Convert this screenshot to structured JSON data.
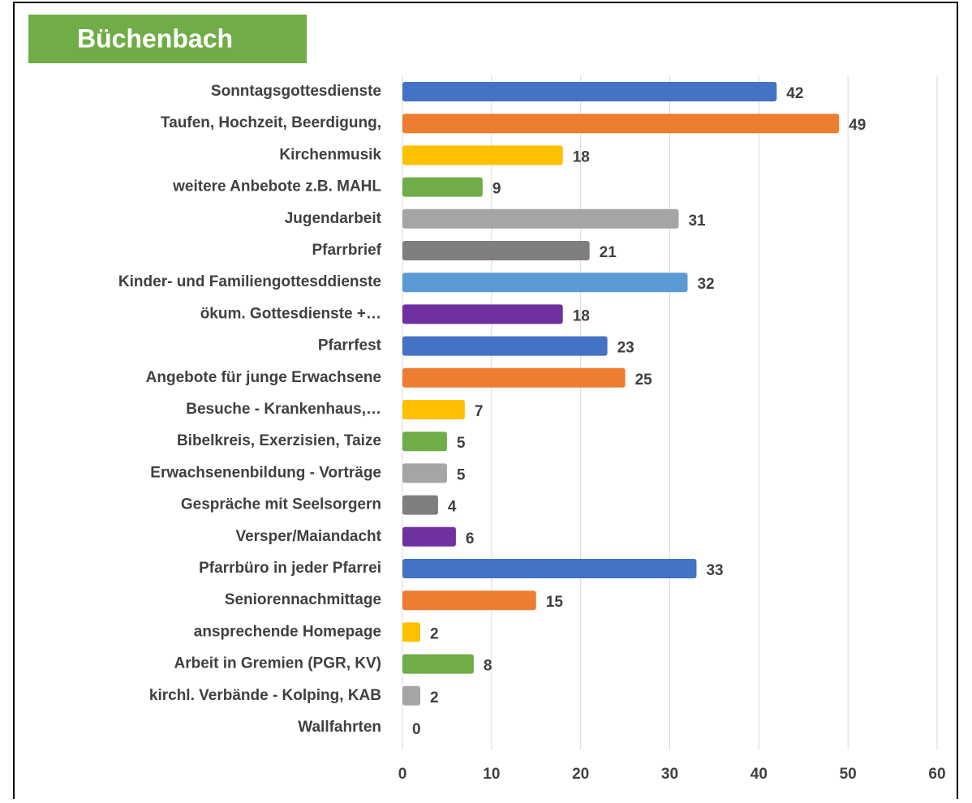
{
  "chart_data": {
    "type": "barh",
    "title": "Büchenbach",
    "categories": [
      "Sonntagsgottesdienste",
      "Taufen, Hochzeit, Beerdigung,",
      "Kirchenmusik",
      "weitere Anbebote z.B. MAHL",
      "Jugendarbeit",
      "Pfarrbrief",
      "Kinder- und Familiengottesddienste",
      "ökum. Gottesdienste +…",
      "Pfarrfest",
      "Angebote für junge Erwachsene",
      "Besuche - Krankenhaus,…",
      "Bibelkreis, Exerzisien, Taize",
      "Erwachsenenbildung - Vorträge",
      "Gespräche mit Seelsorgern",
      "Versper/Maiandacht",
      "Pfarrbüro in jeder Pfarrei",
      "Seniorennachmittage",
      "ansprechende Homepage",
      "Arbeit in Gremien (PGR, KV)",
      "kirchl. Verbände - Kolping, KAB",
      "Wallfahrten"
    ],
    "values": [
      42,
      49,
      18,
      9,
      31,
      21,
      32,
      18,
      23,
      25,
      7,
      5,
      5,
      4,
      6,
      33,
      15,
      2,
      8,
      2,
      0
    ],
    "colors": [
      "#4472c4",
      "#ed7d31",
      "#ffc000",
      "#70ad47",
      "#a5a5a5",
      "#7f7f7f",
      "#5b9bd5",
      "#7030a0",
      "#4472c4",
      "#ed7d31",
      "#ffc000",
      "#70ad47",
      "#a5a5a5",
      "#7f7f7f",
      "#7030a0",
      "#4472c4",
      "#ed7d31",
      "#ffc000",
      "#70ad47",
      "#a5a5a5",
      "#5b9bd5"
    ],
    "title_color": "#70ad47",
    "xlim": [
      0,
      60
    ],
    "xticks": [
      0,
      10,
      20,
      30,
      40,
      50,
      60
    ],
    "grid": true
  }
}
